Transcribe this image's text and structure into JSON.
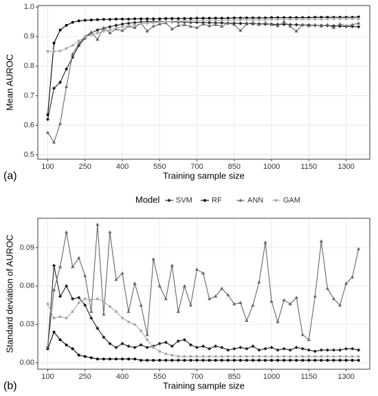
{
  "chart_data": [
    {
      "type": "line",
      "tag": "(a)",
      "xlabel": "Training sample size",
      "ylabel": "Mean AUROC",
      "x": [
        100,
        125,
        150,
        175,
        200,
        225,
        250,
        275,
        300,
        325,
        350,
        375,
        400,
        425,
        450,
        475,
        500,
        525,
        550,
        575,
        600,
        625,
        650,
        675,
        700,
        725,
        750,
        775,
        800,
        825,
        850,
        875,
        900,
        925,
        950,
        975,
        1000,
        1025,
        1050,
        1075,
        1100,
        1125,
        1150,
        1175,
        1200,
        1225,
        1250,
        1275,
        1300,
        1325,
        1350
      ],
      "xlim": [
        60,
        1395
      ],
      "xticks": [
        100,
        250,
        400,
        550,
        700,
        850,
        1000,
        1150,
        1300
      ],
      "ylim": [
        0.485,
        1.005
      ],
      "yticks": [
        0.5,
        0.6,
        0.7,
        0.8,
        0.9,
        {
          "value": 1,
          "label": "1.0"
        }
      ],
      "grid": true,
      "series": [
        {
          "name": "SVM",
          "color": "#222222",
          "marker": "diamond",
          "values": [
            0.62,
            0.725,
            0.745,
            0.79,
            0.83,
            0.87,
            0.895,
            0.912,
            0.922,
            0.928,
            0.933,
            0.938,
            0.942,
            0.945,
            0.947,
            0.949,
            0.95,
            0.95,
            0.951,
            0.95,
            0.95,
            0.949,
            0.949,
            0.948,
            0.948,
            0.947,
            0.947,
            0.946,
            0.946,
            0.945,
            0.945,
            0.944,
            0.944,
            0.943,
            0.943,
            0.942,
            0.942,
            0.941,
            0.941,
            0.94,
            0.94,
            0.939,
            0.939,
            0.938,
            0.937,
            0.937,
            0.936,
            0.935,
            0.934,
            0.934,
            0.933
          ]
        },
        {
          "name": "RF",
          "color": "#000000",
          "marker": "circle",
          "values": [
            0.635,
            0.878,
            0.922,
            0.938,
            0.948,
            0.953,
            0.955,
            0.956,
            0.957,
            0.958,
            0.958,
            0.959,
            0.959,
            0.959,
            0.96,
            0.96,
            0.96,
            0.96,
            0.96,
            0.961,
            0.961,
            0.961,
            0.961,
            0.961,
            0.962,
            0.962,
            0.962,
            0.962,
            0.962,
            0.962,
            0.963,
            0.963,
            0.963,
            0.963,
            0.963,
            0.963,
            0.964,
            0.964,
            0.964,
            0.964,
            0.964,
            0.964,
            0.964,
            0.965,
            0.965,
            0.965,
            0.965,
            0.965,
            0.965,
            0.965,
            0.966
          ]
        },
        {
          "name": "ANN",
          "color": "#666666",
          "marker": "triangle",
          "values": [
            0.575,
            0.542,
            0.605,
            0.73,
            0.84,
            0.875,
            0.9,
            0.915,
            0.89,
            0.93,
            0.912,
            0.925,
            0.92,
            0.935,
            0.93,
            0.945,
            0.918,
            0.935,
            0.942,
            0.946,
            0.925,
            0.937,
            0.94,
            0.934,
            0.93,
            0.942,
            0.936,
            0.94,
            0.934,
            0.946,
            0.94,
            0.92,
            0.942,
            0.947,
            0.94,
            0.946,
            0.94,
            0.936,
            0.95,
            0.935,
            0.918,
            0.94,
            0.936,
            0.94,
            0.935,
            0.94,
            0.93,
            0.942,
            0.936,
            0.94,
            0.945
          ]
        },
        {
          "name": "GAM",
          "color": "#aaaaaa",
          "marker": "square",
          "values": [
            0.85,
            0.85,
            0.851,
            0.86,
            0.87,
            0.885,
            0.898,
            0.906,
            0.912,
            0.918,
            0.923,
            0.928,
            0.933,
            0.937,
            0.94,
            0.943,
            0.945,
            0.947,
            0.949,
            0.95,
            0.951,
            0.952,
            0.953,
            0.953,
            0.954,
            0.954,
            0.955,
            0.955,
            0.955,
            0.956,
            0.956,
            0.956,
            0.957,
            0.957,
            0.957,
            0.957,
            0.958,
            0.958,
            0.958,
            0.958,
            0.958,
            0.959,
            0.959,
            0.959,
            0.959,
            0.959,
            0.96,
            0.96,
            0.96,
            0.96,
            0.96
          ]
        }
      ]
    },
    {
      "type": "line",
      "tag": "(b)",
      "xlabel": "Training sample size",
      "ylabel": "Standard deviation of AUROC",
      "legend_title": "Model",
      "x": [
        100,
        125,
        150,
        175,
        200,
        225,
        250,
        275,
        300,
        325,
        350,
        375,
        400,
        425,
        450,
        475,
        500,
        525,
        550,
        575,
        600,
        625,
        650,
        675,
        700,
        725,
        750,
        775,
        800,
        825,
        850,
        875,
        900,
        925,
        950,
        975,
        1000,
        1025,
        1050,
        1075,
        1100,
        1125,
        1150,
        1175,
        1200,
        1225,
        1250,
        1275,
        1300,
        1325,
        1350
      ],
      "xlim": [
        60,
        1395
      ],
      "xticks": [
        100,
        250,
        400,
        550,
        700,
        850,
        1000,
        1150,
        1300
      ],
      "ylim": [
        -0.005,
        0.113
      ],
      "yticks": [
        {
          "value": 0,
          "label": "0.00"
        },
        {
          "value": 0.03,
          "label": "0.03"
        },
        {
          "value": 0.06,
          "label": "0.06"
        },
        {
          "value": 0.09,
          "label": "0.09"
        }
      ],
      "grid": true,
      "series": [
        {
          "name": "SVM",
          "color": "#222222",
          "marker": "diamond",
          "values": [
            0.012,
            0.076,
            0.052,
            0.06,
            0.05,
            0.051,
            0.045,
            0.035,
            0.027,
            0.02,
            0.015,
            0.012,
            0.015,
            0.013,
            0.012,
            0.014,
            0.012,
            0.013,
            0.015,
            0.016,
            0.013,
            0.017,
            0.018,
            0.014,
            0.012,
            0.013,
            0.011,
            0.013,
            0.012,
            0.01,
            0.011,
            0.012,
            0.011,
            0.013,
            0.01,
            0.011,
            0.012,
            0.01,
            0.011,
            0.01,
            0.012,
            0.011,
            0.01,
            0.009,
            0.01,
            0.01,
            0.01,
            0.01,
            0.011,
            0.011,
            0.01
          ]
        },
        {
          "name": "RF",
          "color": "#000000",
          "marker": "circle",
          "values": [
            0.011,
            0.024,
            0.018,
            0.014,
            0.011,
            0.006,
            0.005,
            0.004,
            0.003,
            0.003,
            0.003,
            0.003,
            0.003,
            0.003,
            0.003,
            0.002,
            0.002,
            0.002,
            0.002,
            0.002,
            0.002,
            0.002,
            0.002,
            0.002,
            0.002,
            0.002,
            0.002,
            0.002,
            0.002,
            0.002,
            0.002,
            0.002,
            0.002,
            0.002,
            0.002,
            0.002,
            0.002,
            0.002,
            0.002,
            0.002,
            0.002,
            0.002,
            0.002,
            0.002,
            0.002,
            0.002,
            0.002,
            0.002,
            0.002,
            0.002,
            0.002
          ]
        },
        {
          "name": "ANN",
          "color": "#666666",
          "marker": "triangle",
          "values": [
            0.012,
            0.057,
            0.075,
            0.102,
            0.075,
            0.082,
            0.068,
            0.04,
            0.108,
            0.038,
            0.102,
            0.065,
            0.07,
            0.04,
            0.062,
            0.045,
            0.022,
            0.081,
            0.06,
            0.05,
            0.076,
            0.04,
            0.06,
            0.045,
            0.073,
            0.07,
            0.05,
            0.052,
            0.058,
            0.053,
            0.046,
            0.047,
            0.033,
            0.045,
            0.063,
            0.094,
            0.048,
            0.032,
            0.049,
            0.046,
            0.051,
            0.022,
            0.018,
            0.052,
            0.095,
            0.058,
            0.05,
            0.045,
            0.062,
            0.067,
            0.089
          ]
        },
        {
          "name": "GAM",
          "color": "#aaaaaa",
          "marker": "square",
          "values": [
            0.046,
            0.035,
            0.036,
            0.035,
            0.04,
            0.047,
            0.05,
            0.049,
            0.05,
            0.048,
            0.044,
            0.04,
            0.035,
            0.032,
            0.03,
            0.025,
            0.018,
            0.012,
            0.009,
            0.007,
            0.006,
            0.005,
            0.005,
            0.005,
            0.005,
            0.005,
            0.005,
            0.005,
            0.005,
            0.005,
            0.005,
            0.005,
            0.005,
            0.005,
            0.005,
            0.005,
            0.005,
            0.005,
            0.005,
            0.005,
            0.005,
            0.005,
            0.005,
            0.005,
            0.005,
            0.005,
            0.005,
            0.005,
            0.005,
            0.005,
            0.005
          ]
        }
      ]
    }
  ]
}
